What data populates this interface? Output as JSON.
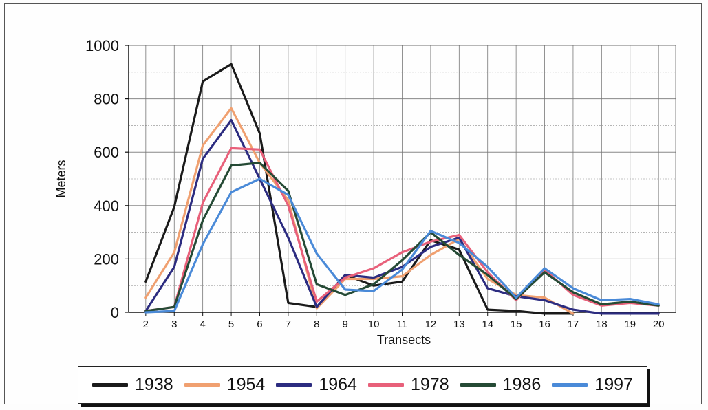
{
  "chart_data": {
    "type": "line",
    "xlabel": "Transects",
    "ylabel": "Meters",
    "x": [
      2,
      3,
      4,
      5,
      6,
      7,
      8,
      9,
      10,
      11,
      12,
      13,
      14,
      15,
      16,
      17,
      18,
      19,
      20
    ],
    "ylim": [
      0,
      1000
    ],
    "yticks": [
      0,
      200,
      400,
      600,
      800,
      1000
    ],
    "grid": true,
    "legend_position": "bottom",
    "series": [
      {
        "name": "1938",
        "color": "#1a1a1a",
        "values": [
          115,
          395,
          865,
          930,
          670,
          35,
          20,
          140,
          100,
          115,
          270,
          235,
          10,
          5,
          -5,
          -5,
          null,
          null,
          null
        ]
      },
      {
        "name": "1954",
        "color": "#f0a070",
        "values": [
          55,
          225,
          625,
          765,
          560,
          420,
          15,
          125,
          125,
          135,
          215,
          275,
          125,
          65,
          55,
          -5,
          null,
          null,
          null
        ]
      },
      {
        "name": "1964",
        "color": "#2c2c80",
        "values": [
          5,
          170,
          575,
          720,
          500,
          280,
          20,
          140,
          130,
          170,
          245,
          280,
          90,
          60,
          45,
          10,
          -5,
          -5,
          -5
        ]
      },
      {
        "name": "1978",
        "color": "#e8607a",
        "values": [
          5,
          20,
          410,
          615,
          610,
          400,
          40,
          130,
          165,
          225,
          265,
          290,
          150,
          45,
          160,
          65,
          25,
          35,
          25
        ]
      },
      {
        "name": "1986",
        "color": "#254a35",
        "values": [
          5,
          20,
          345,
          550,
          560,
          455,
          105,
          65,
          105,
          195,
          300,
          215,
          140,
          50,
          150,
          75,
          30,
          40,
          25
        ]
      },
      {
        "name": "1997",
        "color": "#4a8ad8",
        "values": [
          0,
          5,
          255,
          450,
          500,
          440,
          220,
          85,
          80,
          160,
          305,
          260,
          170,
          55,
          165,
          90,
          45,
          50,
          30
        ]
      }
    ]
  }
}
